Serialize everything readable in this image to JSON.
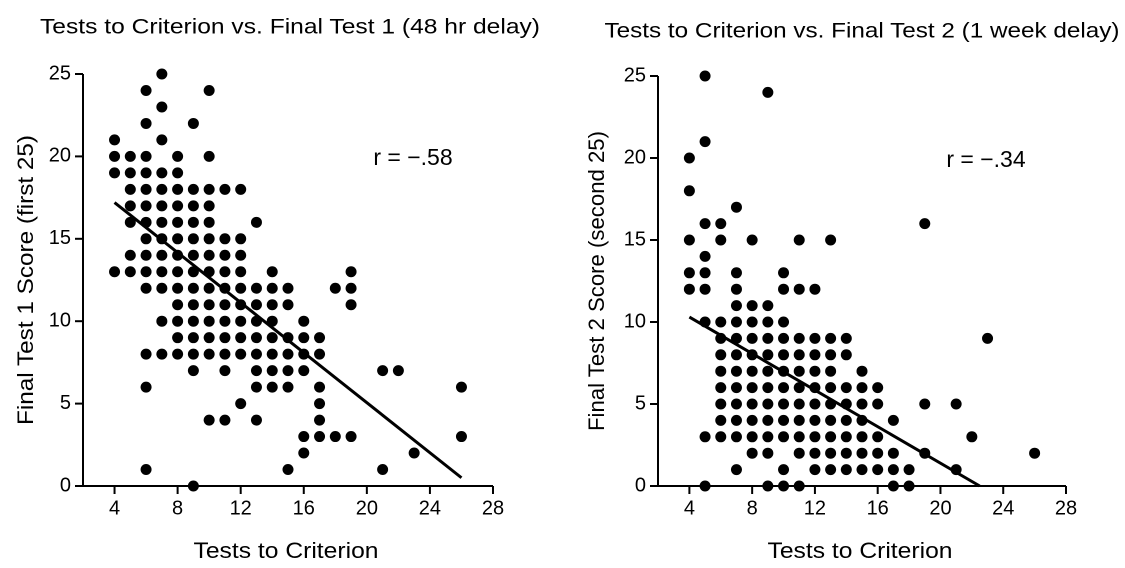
{
  "chart_data": [
    {
      "type": "scatter",
      "title": "Tests to Criterion vs. Final Test 1 (48 hr delay)",
      "xlabel": "Tests to Criterion",
      "ylabel": "Final Test 1 Score (first 25)",
      "annotation": "r = −.58",
      "color": "#000000",
      "xlim": [
        2,
        28
      ],
      "ylim": [
        0,
        25
      ],
      "xticks": [
        4,
        8,
        12,
        16,
        20,
        24,
        28
      ],
      "yticks": [
        0,
        5,
        10,
        15,
        20,
        25
      ],
      "x": [
        4,
        4,
        4,
        4,
        5,
        5,
        5,
        5,
        5,
        5,
        5,
        6,
        6,
        6,
        6,
        6,
        6,
        6,
        6,
        6,
        6,
        6,
        6,
        6,
        6,
        7,
        7,
        7,
        7,
        7,
        7,
        7,
        7,
        7,
        7,
        7,
        7,
        7,
        8,
        8,
        8,
        8,
        8,
        8,
        8,
        8,
        8,
        8,
        8,
        8,
        8,
        9,
        9,
        9,
        9,
        9,
        9,
        9,
        9,
        9,
        9,
        9,
        9,
        9,
        9,
        10,
        10,
        10,
        10,
        10,
        10,
        10,
        10,
        10,
        10,
        10,
        10,
        10,
        10,
        11,
        11,
        11,
        11,
        11,
        11,
        11,
        11,
        11,
        11,
        11,
        12,
        12,
        12,
        12,
        12,
        12,
        12,
        12,
        12,
        12,
        13,
        13,
        13,
        13,
        13,
        13,
        13,
        13,
        13,
        14,
        14,
        14,
        14,
        14,
        14,
        14,
        14,
        15,
        15,
        15,
        15,
        15,
        15,
        15,
        16,
        16,
        16,
        16,
        16,
        16,
        17,
        17,
        17,
        17,
        17,
        17,
        18,
        18,
        19,
        19,
        19,
        19,
        21,
        21,
        22,
        23,
        26,
        26
      ],
      "y": [
        21,
        20,
        19,
        13,
        20,
        19,
        18,
        17,
        16,
        14,
        13,
        24,
        22,
        20,
        19,
        18,
        17,
        16,
        15,
        14,
        13,
        12,
        8,
        6,
        1,
        25,
        23,
        21,
        19,
        18,
        17,
        16,
        15,
        14,
        13,
        12,
        10,
        8,
        20,
        19,
        18,
        17,
        16,
        15,
        14,
        13,
        12,
        11,
        10,
        9,
        8,
        22,
        18,
        17,
        16,
        15,
        14,
        13,
        12,
        11,
        10,
        9,
        8,
        7,
        0,
        24,
        20,
        18,
        17,
        16,
        15,
        14,
        13,
        12,
        11,
        10,
        9,
        8,
        4,
        18,
        15,
        14,
        13,
        12,
        11,
        10,
        9,
        8,
        7,
        4,
        18,
        15,
        14,
        13,
        12,
        11,
        10,
        9,
        8,
        5,
        16,
        12,
        11,
        10,
        9,
        8,
        7,
        6,
        4,
        13,
        12,
        11,
        10,
        9,
        8,
        7,
        6,
        12,
        11,
        9,
        8,
        7,
        6,
        1,
        10,
        9,
        8,
        7,
        3,
        2,
        9,
        8,
        6,
        5,
        4,
        3,
        12,
        3,
        13,
        12,
        11,
        3,
        7,
        1,
        7,
        2,
        6,
        3
      ],
      "fit_line": {
        "x": [
          4,
          26
        ],
        "y": [
          17.2,
          0.5
        ]
      }
    },
    {
      "type": "scatter",
      "title": "Tests to Criterion vs. Final Test 2 (1 week delay)",
      "xlabel": "Tests to Criterion",
      "ylabel": "Final Test 2 Score (second 25)",
      "annotation": "r = −.34",
      "color": "#000000",
      "xlim": [
        2,
        28
      ],
      "ylim": [
        0,
        25
      ],
      "xticks": [
        4,
        8,
        12,
        16,
        20,
        24,
        28
      ],
      "yticks": [
        0,
        5,
        10,
        15,
        20,
        25
      ],
      "x": [
        4,
        4,
        4,
        4,
        4,
        5,
        5,
        5,
        5,
        5,
        5,
        5,
        5,
        5,
        6,
        6,
        6,
        6,
        6,
        6,
        6,
        6,
        6,
        6,
        7,
        7,
        7,
        7,
        7,
        7,
        7,
        7,
        7,
        7,
        7,
        7,
        7,
        8,
        8,
        8,
        8,
        8,
        8,
        8,
        8,
        8,
        8,
        8,
        9,
        9,
        9,
        9,
        9,
        9,
        9,
        9,
        9,
        9,
        9,
        9,
        10,
        10,
        10,
        10,
        10,
        10,
        10,
        10,
        10,
        10,
        10,
        10,
        11,
        11,
        11,
        11,
        11,
        11,
        11,
        11,
        11,
        11,
        11,
        12,
        12,
        12,
        12,
        12,
        12,
        12,
        12,
        12,
        12,
        13,
        13,
        13,
        13,
        13,
        13,
        13,
        13,
        13,
        13,
        14,
        14,
        14,
        14,
        14,
        14,
        14,
        14,
        15,
        15,
        15,
        15,
        15,
        15,
        15,
        16,
        16,
        16,
        16,
        16,
        17,
        17,
        17,
        17,
        18,
        18,
        19,
        19,
        19,
        21,
        21,
        22,
        23,
        26
      ],
      "y": [
        20,
        18,
        15,
        13,
        12,
        25,
        21,
        16,
        14,
        13,
        12,
        10,
        3,
        0,
        16,
        15,
        10,
        9,
        8,
        7,
        6,
        5,
        4,
        3,
        17,
        13,
        12,
        11,
        10,
        9,
        8,
        7,
        6,
        5,
        4,
        3,
        1,
        15,
        11,
        10,
        9,
        8,
        7,
        6,
        5,
        4,
        3,
        2,
        24,
        11,
        10,
        9,
        8,
        7,
        6,
        5,
        4,
        3,
        2,
        0,
        13,
        12,
        10,
        9,
        8,
        7,
        6,
        5,
        4,
        3,
        1,
        0,
        15,
        12,
        9,
        8,
        7,
        6,
        5,
        4,
        3,
        2,
        0,
        12,
        9,
        8,
        7,
        6,
        5,
        4,
        3,
        2,
        1,
        15,
        9,
        8,
        7,
        6,
        5,
        4,
        3,
        2,
        1,
        9,
        8,
        6,
        5,
        4,
        3,
        2,
        1,
        7,
        6,
        5,
        4,
        3,
        2,
        1,
        6,
        5,
        3,
        2,
        1,
        4,
        2,
        1,
        0,
        1,
        0,
        16,
        5,
        2,
        5,
        1,
        3,
        9,
        2
      ],
      "fit_line": {
        "x": [
          4,
          22.5
        ],
        "y": [
          10.3,
          0
        ]
      }
    }
  ]
}
